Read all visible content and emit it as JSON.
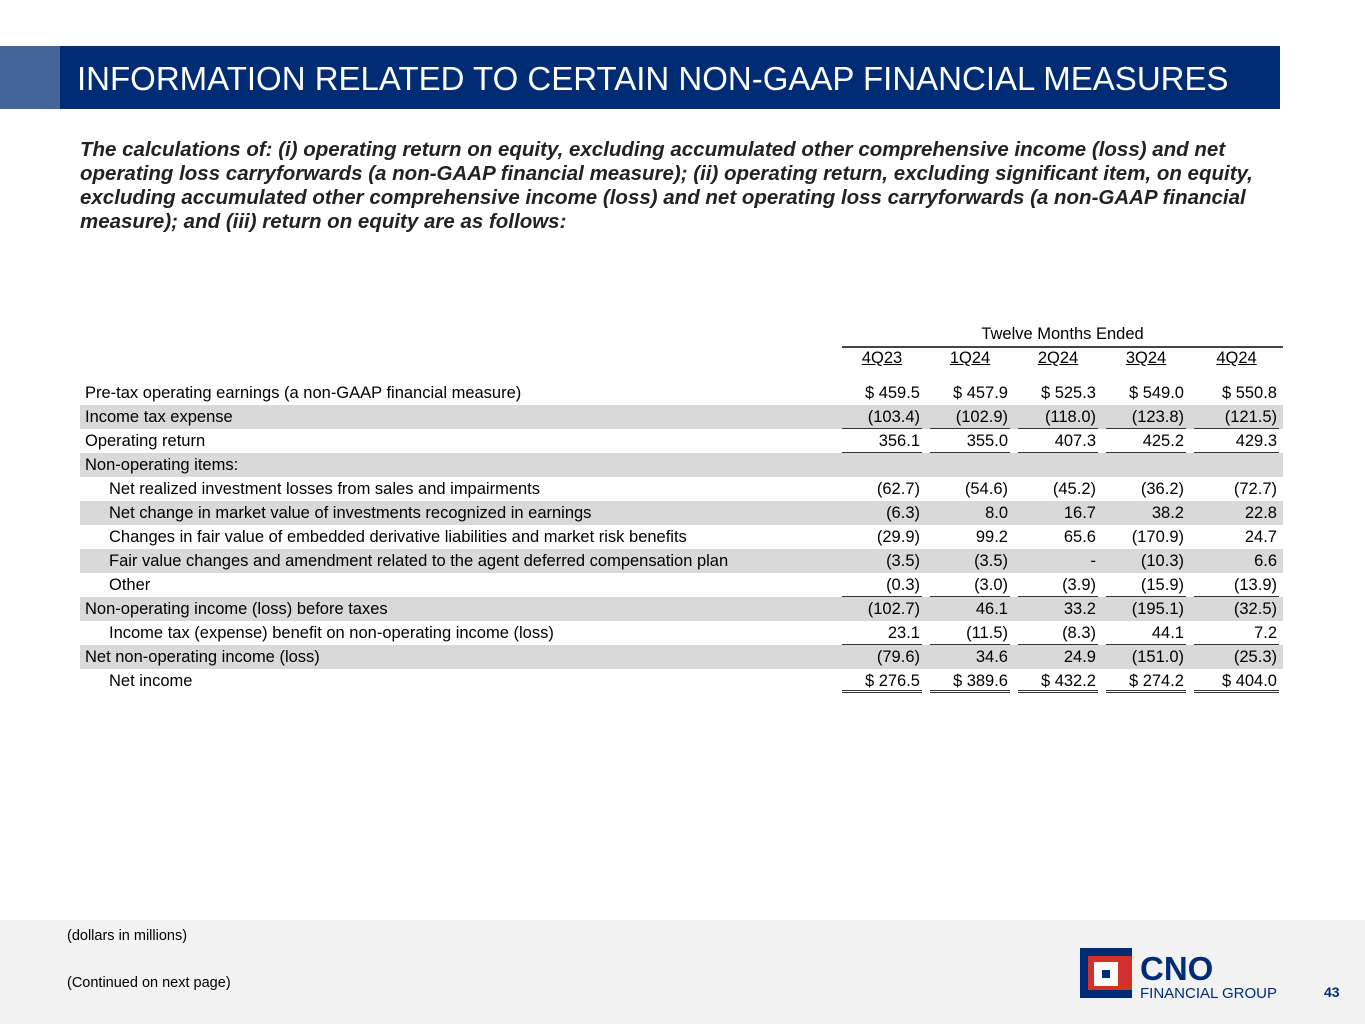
{
  "header": {
    "title": "INFORMATION RELATED TO CERTAIN NON-GAAP FINANCIAL MEASURES"
  },
  "intro": "The calculations of: (i) operating return on equity, excluding accumulated other comprehensive income (loss) and net operating loss carryforwards (a non-GAAP financial measure); (ii) operating return, excluding significant item, on equity, excluding accumulated other comprehensive income (loss) and net operating loss carryforwards (a non-GAAP financial measure); and (iii) return on equity are as follows:",
  "table": {
    "group_header": "Twelve Months Ended",
    "columns": [
      "4Q23",
      "1Q24",
      "2Q24",
      "3Q24",
      "4Q24"
    ],
    "rows": [
      {
        "label": "Pre-tax operating earnings (a non-GAAP financial measure)",
        "values": [
          "$ 459.5",
          "$ 457.9",
          "$ 525.3",
          "$ 549.0",
          "$ 550.8"
        ]
      },
      {
        "label": "Income tax expense",
        "values": [
          "(103.4)",
          "(102.9)",
          "(118.0)",
          "(123.8)",
          "(121.5)"
        ]
      },
      {
        "label": "Operating return",
        "values": [
          "356.1",
          "355.0",
          "407.3",
          "425.2",
          "429.3"
        ]
      },
      {
        "label": "Non-operating items:",
        "values": [
          "",
          "",
          "",
          "",
          ""
        ]
      },
      {
        "label": "Net realized investment losses from sales and impairments",
        "values": [
          "(62.7)",
          "(54.6)",
          "(45.2)",
          "(36.2)",
          "(72.7)"
        ]
      },
      {
        "label": "Net change in market value of investments recognized in earnings",
        "values": [
          "(6.3)",
          "8.0",
          "16.7",
          "38.2",
          "22.8"
        ]
      },
      {
        "label": "Changes in fair value of embedded derivative liabilities and market risk benefits",
        "values": [
          "(29.9)",
          "99.2",
          "65.6",
          "(170.9)",
          "24.7"
        ]
      },
      {
        "label": "Fair value changes and amendment related to the agent deferred compensation plan",
        "values": [
          "(3.5)",
          "(3.5)",
          "-",
          "(10.3)",
          "6.6"
        ]
      },
      {
        "label": "Other",
        "values": [
          "(0.3)",
          "(3.0)",
          "(3.9)",
          "(15.9)",
          "(13.9)"
        ]
      },
      {
        "label": "Non-operating income (loss) before taxes",
        "values": [
          "(102.7)",
          "46.1",
          "33.2",
          "(195.1)",
          "(32.5)"
        ]
      },
      {
        "label": "Income tax (expense) benefit on non-operating income (loss)",
        "values": [
          "23.1",
          "(11.5)",
          "(8.3)",
          "44.1",
          "7.2"
        ]
      },
      {
        "label": "Net non-operating income (loss)",
        "values": [
          "(79.6)",
          "34.6",
          "24.9",
          "(151.0)",
          "(25.3)"
        ]
      },
      {
        "label": "Net income",
        "values": [
          "$ 276.5",
          "$ 389.6",
          "$ 432.2",
          "$ 274.2",
          "$ 404.0"
        ]
      }
    ]
  },
  "footer": {
    "note1": "(dollars in millions)",
    "note2": "(Continued on next page)",
    "page_number": "43",
    "logo_text": "CNO",
    "logo_subtext": "FINANCIAL GROUP"
  },
  "colors": {
    "navy": "#002b75",
    "accent": "#44659a",
    "logo_red": "#d0312d"
  }
}
